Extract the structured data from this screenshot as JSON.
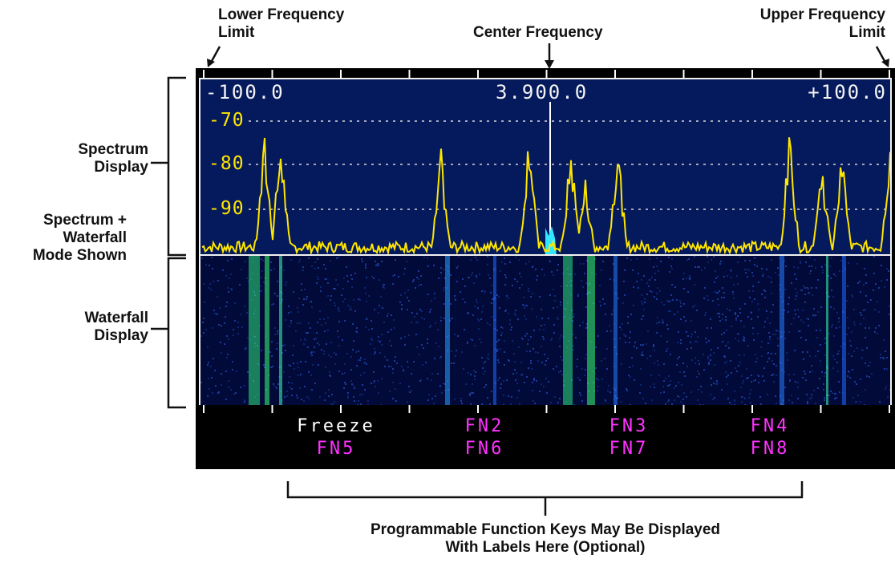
{
  "callouts": {
    "lower_limit": [
      "Lower Frequency",
      "Limit"
    ],
    "center": "Center Frequency",
    "upper_limit": [
      "Upper Frequency",
      "Limit"
    ],
    "spectrum": [
      "Spectrum",
      "Display"
    ],
    "mode": [
      "Spectrum +",
      "Waterfall",
      "Mode Shown"
    ],
    "waterfall": [
      "Waterfall",
      "Display"
    ],
    "function_keys": [
      "Programmable Function Keys May Be Displayed",
      "With Labels Here (Optional)"
    ]
  },
  "spectrum": {
    "freq_left": "-100.0",
    "freq_center": "3.900.0",
    "freq_right": "+100.0",
    "db_labels": [
      "-70",
      "-80",
      "-90"
    ]
  },
  "function_keys": {
    "row1": [
      "Freeze",
      "FN2",
      "FN3",
      "FN4"
    ],
    "row2": [
      "FN5",
      "FN6",
      "FN7",
      "FN8"
    ]
  },
  "colors": {
    "spectrum_bg": "#051a5c",
    "trace": "#ffe600",
    "fn_label": "#ff33ff",
    "freeze_label": "#ffffff"
  }
}
